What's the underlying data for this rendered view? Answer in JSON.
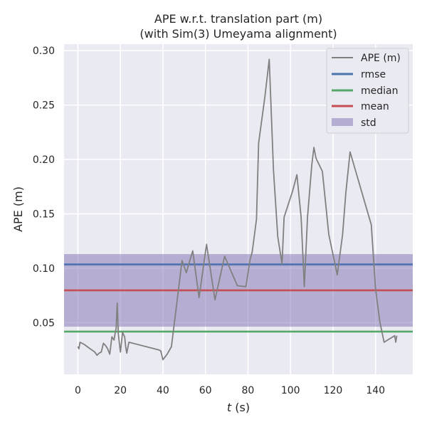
{
  "chart_data": {
    "type": "line",
    "title": "APE w.r.t. translation part (m)",
    "subtitle": "(with Sim(3) Umeyama alignment)",
    "xlabel_italic": "t",
    "xlabel_rest": " (s)",
    "ylabel": "APE (m)",
    "xlim": [
      -6.5,
      157.5
    ],
    "ylim": [
      0.0025,
      0.306
    ],
    "x_ticks": [
      0,
      20,
      40,
      60,
      80,
      100,
      120,
      140
    ],
    "x_tick_labels": [
      "0",
      "20",
      "40",
      "60",
      "80",
      "100",
      "120",
      "140"
    ],
    "y_ticks": [
      0.05,
      0.1,
      0.15,
      0.2,
      0.25,
      0.3
    ],
    "y_tick_labels": [
      "0.05",
      "0.10",
      "0.15",
      "0.20",
      "0.25",
      "0.30"
    ],
    "grid": true,
    "legend_position": "top-right",
    "legend": [
      "APE (m)",
      "rmse",
      "median",
      "mean",
      "std"
    ],
    "colors": {
      "ape": "#808080",
      "rmse": "#4c72b0",
      "median": "#55a868",
      "mean": "#c44e52",
      "std": "#8172b2",
      "axes_bg": "#eaeaf2",
      "grid": "#ffffff"
    },
    "stats": {
      "rmse": 0.1035,
      "median": 0.0418,
      "mean": 0.0797,
      "std_low": 0.0463,
      "std_high": 0.113
    },
    "series": [
      {
        "name": "APE (m)",
        "x": [
          0,
          0.5,
          1,
          3,
          5,
          8,
          9,
          10,
          11,
          12,
          13,
          14,
          15,
          16,
          17,
          17.5,
          18,
          18.5,
          19,
          20,
          21,
          22,
          22.5,
          23,
          24,
          38,
          39,
          40,
          42,
          44,
          49,
          51,
          54,
          57,
          60.5,
          64.5,
          69,
          75,
          79,
          81,
          82,
          84,
          85,
          88,
          90,
          92,
          94,
          96,
          97,
          101,
          103,
          105,
          106.5,
          108,
          110,
          111,
          112,
          115,
          118,
          122,
          124.5,
          126,
          128,
          138,
          140,
          142,
          144,
          149,
          149.5,
          150
        ],
        "y": [
          0.028,
          0.026,
          0.032,
          0.03,
          0.027,
          0.023,
          0.02,
          0.022,
          0.023,
          0.031,
          0.029,
          0.026,
          0.021,
          0.037,
          0.034,
          0.04,
          0.045,
          0.068,
          0.04,
          0.023,
          0.041,
          0.037,
          0.028,
          0.022,
          0.032,
          0.025,
          0.024,
          0.016,
          0.021,
          0.028,
          0.107,
          0.096,
          0.116,
          0.073,
          0.122,
          0.071,
          0.111,
          0.084,
          0.083,
          0.108,
          0.115,
          0.145,
          0.215,
          0.258,
          0.292,
          0.19,
          0.129,
          0.104,
          0.147,
          0.171,
          0.186,
          0.147,
          0.083,
          0.147,
          0.195,
          0.211,
          0.201,
          0.189,
          0.131,
          0.094,
          0.131,
          0.169,
          0.207,
          0.14,
          0.081,
          0.051,
          0.032,
          0.038,
          0.032,
          0.038
        ]
      }
    ]
  }
}
